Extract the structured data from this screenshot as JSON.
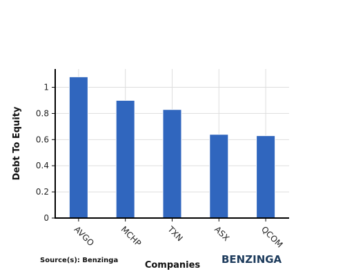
{
  "chart_data": {
    "type": "bar",
    "categories": [
      "AVGO",
      "MCHP",
      "TXN",
      "ASX",
      "QCOM"
    ],
    "values": [
      1.08,
      0.9,
      0.83,
      0.64,
      0.63
    ],
    "xlabel": "Companies",
    "ylabel": "Debt To Equity",
    "ylim": [
      0,
      1.14
    ],
    "yticks": [
      0,
      0.2,
      0.4,
      0.6,
      0.8,
      1
    ],
    "ytick_labels": [
      "0",
      "0.2",
      "0.4",
      "0.6",
      "0.8",
      "1"
    ],
    "grid": true,
    "bar_color": "#3066be"
  },
  "footer": {
    "source": "Source(s): Benzinga",
    "brand": "BENZINGA"
  }
}
